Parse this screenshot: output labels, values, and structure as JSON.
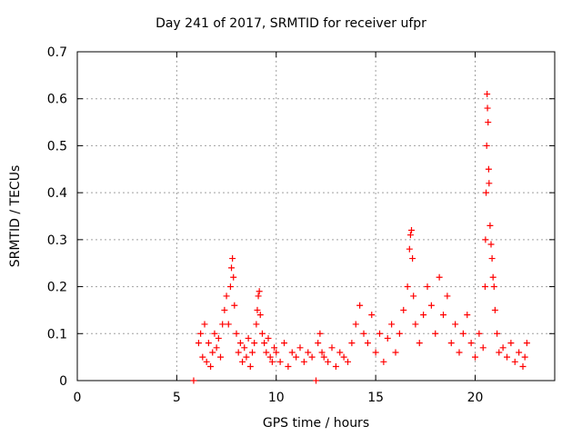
{
  "chart_data": {
    "type": "scatter",
    "title": "Day 241 of 2017, SRMTID for receiver ufpr",
    "xlabel": "GPS time / hours",
    "ylabel": "SRMTID / TECUs",
    "xlim": [
      0,
      24
    ],
    "ylim": [
      0,
      0.7
    ],
    "xticks": [
      0,
      5,
      10,
      15,
      20
    ],
    "yticks": [
      0,
      0.1,
      0.2,
      0.3,
      0.4,
      0.5,
      0.6,
      0.7
    ],
    "grid": true,
    "marker": "+",
    "color": "#ff0000",
    "series": [
      {
        "name": "SRMTID",
        "x": [
          5.85,
          6.1,
          6.2,
          6.3,
          6.4,
          6.5,
          6.6,
          6.7,
          6.8,
          6.9,
          7.0,
          7.1,
          7.2,
          7.3,
          7.4,
          7.5,
          7.6,
          7.7,
          7.75,
          7.8,
          7.85,
          7.9,
          8.0,
          8.1,
          8.2,
          8.3,
          8.4,
          8.5,
          8.6,
          8.7,
          8.8,
          8.9,
          9.0,
          9.05,
          9.1,
          9.15,
          9.2,
          9.3,
          9.4,
          9.5,
          9.6,
          9.7,
          9.8,
          9.9,
          10.0,
          10.2,
          10.4,
          10.6,
          10.8,
          11.0,
          11.2,
          11.4,
          11.6,
          11.8,
          12.0,
          12.1,
          12.2,
          12.3,
          12.4,
          12.6,
          12.8,
          13.0,
          13.2,
          13.4,
          13.6,
          13.8,
          14.0,
          14.2,
          14.4,
          14.6,
          14.8,
          15.0,
          15.2,
          15.4,
          15.6,
          15.8,
          16.0,
          16.2,
          16.4,
          16.6,
          16.7,
          16.75,
          16.8,
          16.85,
          16.9,
          17.0,
          17.2,
          17.4,
          17.6,
          17.8,
          18.0,
          18.2,
          18.4,
          18.6,
          18.8,
          19.0,
          19.2,
          19.4,
          19.6,
          19.8,
          20.0,
          20.2,
          20.4,
          20.5,
          20.52,
          20.55,
          20.58,
          20.6,
          20.62,
          20.65,
          20.68,
          20.7,
          20.75,
          20.8,
          20.85,
          20.9,
          20.95,
          21.0,
          21.1,
          21.2,
          21.4,
          21.6,
          21.8,
          22.0,
          22.2,
          22.4,
          22.5,
          22.6
        ],
        "y": [
          0.0,
          0.08,
          0.1,
          0.05,
          0.12,
          0.04,
          0.08,
          0.03,
          0.06,
          0.1,
          0.07,
          0.09,
          0.05,
          0.12,
          0.15,
          0.18,
          0.12,
          0.2,
          0.24,
          0.26,
          0.22,
          0.16,
          0.1,
          0.06,
          0.08,
          0.04,
          0.07,
          0.05,
          0.09,
          0.03,
          0.06,
          0.08,
          0.12,
          0.15,
          0.18,
          0.19,
          0.14,
          0.1,
          0.08,
          0.06,
          0.09,
          0.05,
          0.04,
          0.07,
          0.06,
          0.04,
          0.08,
          0.03,
          0.06,
          0.05,
          0.07,
          0.04,
          0.06,
          0.05,
          0.0,
          0.08,
          0.1,
          0.06,
          0.05,
          0.04,
          0.07,
          0.03,
          0.06,
          0.05,
          0.04,
          0.08,
          0.12,
          0.16,
          0.1,
          0.08,
          0.14,
          0.06,
          0.1,
          0.04,
          0.09,
          0.12,
          0.06,
          0.1,
          0.15,
          0.2,
          0.28,
          0.31,
          0.32,
          0.26,
          0.18,
          0.12,
          0.08,
          0.14,
          0.2,
          0.16,
          0.1,
          0.22,
          0.14,
          0.18,
          0.08,
          0.12,
          0.06,
          0.1,
          0.14,
          0.08,
          0.05,
          0.1,
          0.07,
          0.2,
          0.3,
          0.4,
          0.5,
          0.61,
          0.58,
          0.55,
          0.45,
          0.42,
          0.33,
          0.29,
          0.26,
          0.22,
          0.2,
          0.15,
          0.1,
          0.06,
          0.07,
          0.05,
          0.08,
          0.04,
          0.06,
          0.03,
          0.05,
          0.08
        ]
      }
    ]
  }
}
